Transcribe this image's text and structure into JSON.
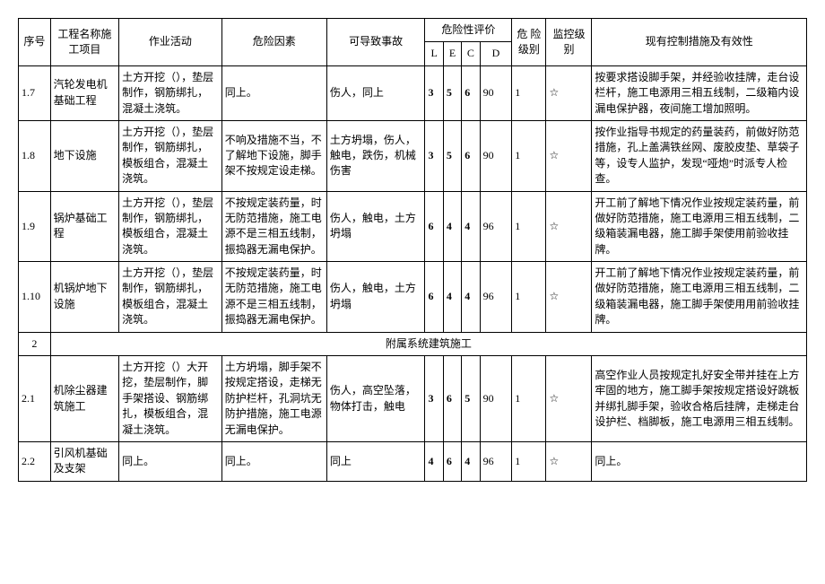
{
  "headers": {
    "seq": "序号",
    "proj": "工程名称施工项目",
    "act": "作业活动",
    "risk": "危险因素",
    "acc": "可导致事故",
    "eval": "危险性评价",
    "L": "L",
    "E": "E",
    "C": "C",
    "D": "D",
    "lvl": "危 险级别",
    "mon": "监控级别",
    "ctrl": "现有控制措施及有效性"
  },
  "rows": [
    {
      "seq": "1.7",
      "proj": "汽轮发电机基础工程",
      "act": "土方开挖（），垫层制作，钢筋绑扎，混凝土浇筑。",
      "risk": "同上。",
      "acc": "伤人，同上",
      "L": "3",
      "E": "5",
      "C": "6",
      "D": "90",
      "lvl": "1",
      "mon": "☆",
      "ctrl": "按要求搭设脚手架，并经验收挂牌，走台设栏杆，施工电源用三相五线制，二级箱内设漏电保护器，夜间施工增加照明。"
    },
    {
      "seq": "1.8",
      "proj": "地下设施",
      "act": "土方开挖（），垫层制作，钢筋绑扎，模板组合，混凝土浇筑。",
      "risk": "不响及措施不当，不了解地下设施，脚手架不按规定设走梯。",
      "acc": "土方坍塌，伤人，触电，跌伤，机械伤害",
      "L": "3",
      "E": "5",
      "C": "6",
      "D": "90",
      "lvl": "1",
      "mon": "☆",
      "ctrl": "按作业指导书规定的药量装药，前做好防范措施，孔上盖满铁丝网、废胶皮垫、草袋子等，设专人监护，发现“哑炮”时派专人检查。"
    },
    {
      "seq": "1.9",
      "proj": "锅炉基础工程",
      "act": "土方开挖（），垫层制作，钢筋绑扎，模板组合，混凝土浇筑。",
      "risk": "不按规定装药量，时无防范措施，施工电源不是三相五线制，振捣器无漏电保护。",
      "acc": "伤人，触电，土方坍塌",
      "L": "6",
      "E": "4",
      "C": "4",
      "D": "96",
      "lvl": "1",
      "mon": "☆",
      "ctrl": "开工前了解地下情况作业按规定装药量，前做好防范措施，施工电源用三相五线制，二级箱装漏电器，施工脚手架使用前验收挂牌。"
    },
    {
      "seq": "1.10",
      "proj": "机锅炉地下设施",
      "act": "土方开挖（），垫层制作，钢筋绑扎，模板组合，混凝土浇筑。",
      "risk": "不按规定装药量，时无防范措施，施工电源不是三相五线制，振捣器无漏电保护。",
      "acc": "伤人，触电，土方坍塌",
      "L": "6",
      "E": "4",
      "C": "4",
      "D": "96",
      "lvl": "1",
      "mon": "☆",
      "ctrl": "开工前了解地下情况作业按规定装药量，前做好防范措施，施工电源用三相五线制，二级箱装漏电器，施工脚手架使用用前验收挂牌。"
    }
  ],
  "section": {
    "seq": "2",
    "title": "附属系统建筑施工"
  },
  "rows2": [
    {
      "seq": "2.1",
      "proj": "机除尘器建筑施工",
      "act": "土方开挖（）大开挖，垫层制作，脚手架搭设、钢筋绑扎，模板组合，混凝土浇筑。",
      "risk": "土方坍塌，脚手架不按规定搭设，走梯无防护栏杆，孔洞坑无防护措施，施工电源无漏电保护。",
      "acc": "伤人，高空坠落，物体打击，触电",
      "L": "3",
      "E": "6",
      "C": "5",
      "D": "90",
      "lvl": "1",
      "mon": "☆",
      "ctrl": "高空作业人员按规定扎好安全带并挂在上方牢固的地方，施工脚手架按规定搭设好跳板并绑扎脚手架，验收合格后挂牌，走梯走台设护栏、档脚板，施工电源用三相五线制。"
    },
    {
      "seq": "2.2",
      "proj": "引风机基础及支架",
      "act": "同上。",
      "risk": "同上。",
      "acc": "同上",
      "L": "4",
      "E": "6",
      "C": "4",
      "D": "96",
      "lvl": "1",
      "mon": "☆",
      "ctrl": "同上。"
    }
  ]
}
